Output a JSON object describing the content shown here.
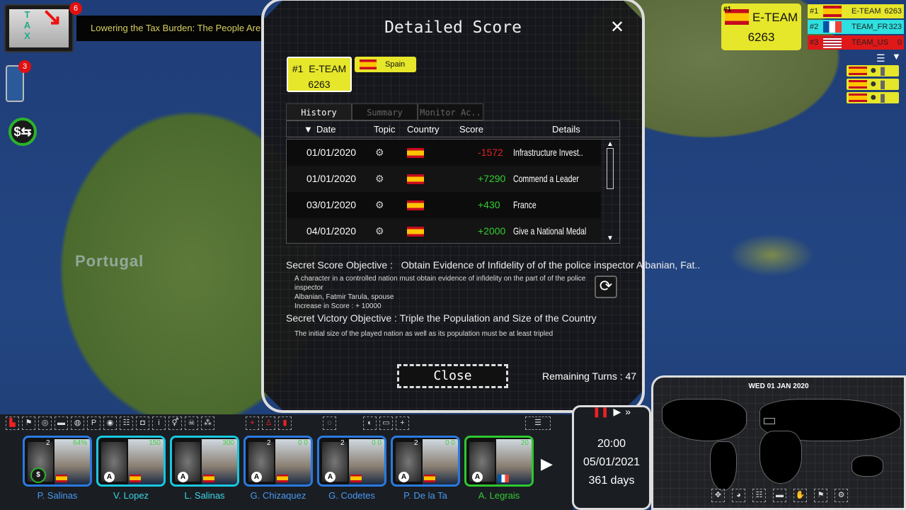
{
  "news": {
    "count": "6",
    "headline": "Lowering the Tax Burden: The People Are Happy; Leadership",
    "thumb_text": "TAX"
  },
  "phone": {
    "count": "3"
  },
  "map": {
    "label": "Portugal"
  },
  "team_summary": {
    "rank": "#1",
    "name": "E-TEAM",
    "score": "6263"
  },
  "leaderboard": [
    {
      "rank": "#1",
      "name": "E-TEAM",
      "score": "6263",
      "flag": "es",
      "color": "#e6e62a"
    },
    {
      "rank": "#2",
      "name": "TEAM_FR",
      "score": "323",
      "flag": "fr",
      "color": "#2ee0e0"
    },
    {
      "rank": "#3",
      "name": "TEAM_US",
      "score": "0",
      "flag": "us",
      "color": "#e01818"
    }
  ],
  "modal": {
    "title": "Detailed Score",
    "team": {
      "rank": "#1",
      "name": "E-TEAM",
      "score": "6263"
    },
    "country": "Spain",
    "tabs": [
      {
        "label": "History",
        "active": true
      },
      {
        "label": "Summary",
        "active": false
      },
      {
        "label": "Monitor Ac..",
        "active": false
      }
    ],
    "columns": [
      "Date",
      "Topic",
      "Country",
      "Score",
      "Details"
    ],
    "rows": [
      {
        "date": "01/01/2020",
        "topic_icon": "infrastructure-icon",
        "country": "es",
        "score": "-1572",
        "details": "Infrastructure Invest.."
      },
      {
        "date": "01/01/2020",
        "topic_icon": "people-icon",
        "country": "es",
        "score": "+7290",
        "details": "Commend a Leader"
      },
      {
        "date": "03/01/2020",
        "topic_icon": "handshake-icon",
        "country": "es",
        "score": "+430",
        "details": "France"
      },
      {
        "date": "04/01/2020",
        "topic_icon": "people-icon",
        "country": "es",
        "score": "+2000",
        "details": "Give a National Medal"
      }
    ],
    "secret_score": {
      "label": "Secret Score Objective :",
      "title": "Obtain Evidence of Infidelity of of the police inspector Albanian, Fat..",
      "desc1": "A character in a controlled nation must obtain evidence of infidelity on the part of of the police inspector",
      "desc2": "Albanian, Fatmir Tarula, spouse",
      "increase": "Increase in Score : + 10000"
    },
    "secret_victory": {
      "label": "Secret Victory Objective :",
      "title": "Triple the Population and Size of the Country",
      "desc": "The initial size of the played nation as well as its population must be at least tripled"
    },
    "close": "Close",
    "remaining_turns": "Remaining Turns : 47"
  },
  "colors": {
    "negative": "#e02020",
    "positive": "#30d030",
    "team_yellow": "#e6e62a"
  },
  "characters": [
    {
      "name": "P. Salinas",
      "level": "2",
      "stat": "64%",
      "flag": "es",
      "color": "#2a7ae0"
    },
    {
      "name": "V. Lopez",
      "level": "",
      "stat": "150",
      "flag": "es",
      "color": "#19c8e0"
    },
    {
      "name": "L. Salinas",
      "level": "",
      "stat": "300",
      "flag": "es",
      "color": "#19c8e0"
    },
    {
      "name": "G. Chizaquez",
      "level": "2",
      "stat": "0 0",
      "flag": "es",
      "color": "#2a7ae0"
    },
    {
      "name": "G. Codetes",
      "level": "2",
      "stat": "0 0",
      "flag": "es",
      "color": "#2a7ae0"
    },
    {
      "name": "P. De la Ta",
      "level": "2",
      "stat": "0 0",
      "flag": "es",
      "color": "#2a7ae0"
    },
    {
      "name": "A. Legrais",
      "level": "",
      "stat": "20",
      "flag": "fr",
      "color": "#2ec82e"
    }
  ],
  "toolbar_icons": [
    "building-icon",
    "flag-icon",
    "mask-icon",
    "tank-icon",
    "globe-icon",
    "parking-icon",
    "camera-icon",
    "family-icon",
    "balaclava-icon",
    "info-icon",
    "gender-icon",
    "skull-icon",
    "network-icon",
    "location-pin-icon",
    "add-person-icon",
    "shield-icon",
    "target-icon",
    "portrait-icon",
    "spain-flag-icon",
    "plus-icon",
    "group-icon"
  ],
  "clock": {
    "time": "20:00",
    "date": "05/01/2021",
    "days": "361 days"
  },
  "minimap": {
    "date": "WED 01 JAN 2020",
    "tools": [
      "locate-icon",
      "palette-icon",
      "population-icon",
      "military-icon",
      "diplomacy-icon",
      "election-icon",
      "settings-icon"
    ]
  }
}
